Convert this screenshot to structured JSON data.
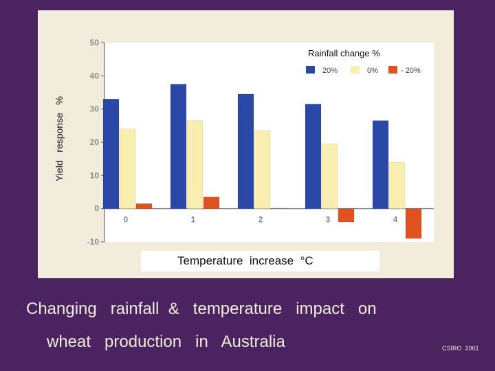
{
  "chart_data": {
    "type": "bar",
    "title": "",
    "xlabel": "Temperature  increase  °C",
    "ylabel": "Yield   response   %",
    "categories": [
      "0",
      "1",
      "2",
      "3",
      "4"
    ],
    "ylim": [
      -10,
      50
    ],
    "yticks": [
      -10,
      0,
      10,
      20,
      30,
      40,
      50
    ],
    "legend_title": "Rainfall   change   %",
    "legend_position": "top-right",
    "series": [
      {
        "name": "20%",
        "color": "#2c48a6",
        "values": [
          33,
          37.5,
          34.5,
          31.5,
          26.5
        ]
      },
      {
        "name": "0%",
        "color": "#f7eeb0",
        "values": [
          24,
          26.5,
          23.5,
          19.5,
          14
        ]
      },
      {
        "name": "- 20%",
        "color": "#e0521f",
        "values": [
          1.5,
          3.5,
          0,
          -4,
          -9
        ]
      }
    ]
  },
  "slide": {
    "title_line1": "Changing   rainfall  &   temperature   impact   on",
    "title_line2": "wheat   production   in   Australia",
    "credit": "CSIRO  2001"
  }
}
